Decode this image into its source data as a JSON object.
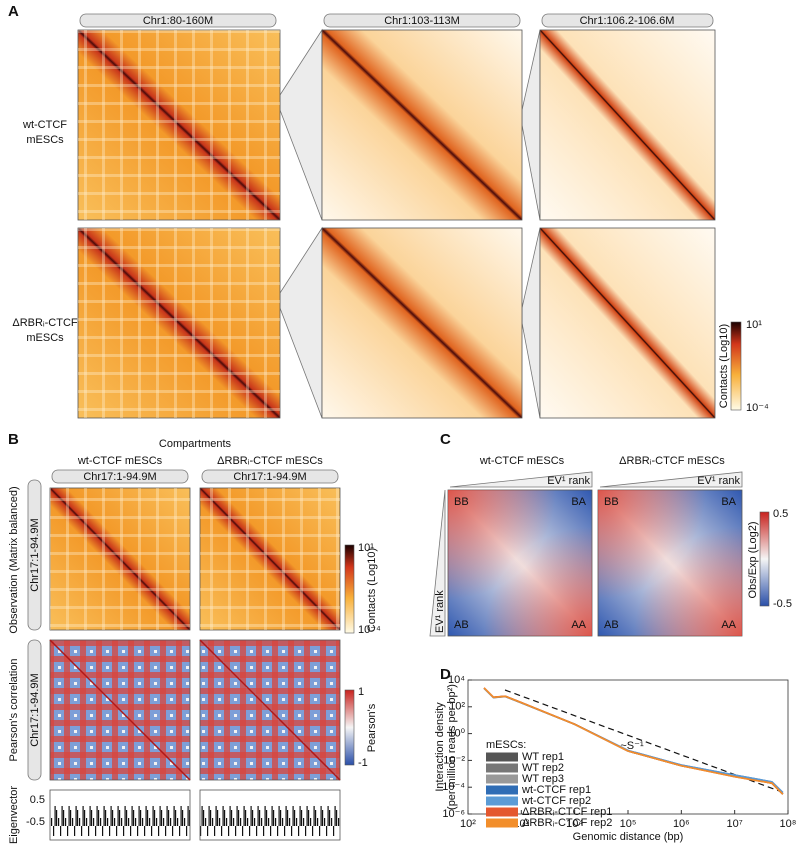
{
  "panel_labels": [
    "A",
    "B",
    "C",
    "D"
  ],
  "panel_a": {
    "headers": [
      "Chr1:80-160M",
      "Chr1:103-113M",
      "Chr1:106.2-106.6M"
    ],
    "rows": [
      [
        "wt-CTCF",
        "mESCs"
      ],
      [
        "ΔRBRᵢ-CTCF",
        "mESCs"
      ]
    ],
    "colorbar": {
      "max": "10¹",
      "min": "10⁻⁴",
      "label": "Contacts (Log10)"
    }
  },
  "panel_b": {
    "title": "Compartments",
    "columns": [
      "wt-CTCF mESCs",
      "ΔRBRᵢ-CTCF mESCs"
    ],
    "region": "Chr17:1-94.9M",
    "row_labels": [
      "Observation (Matrix balanced)",
      "Pearson's correlation",
      "Eigenvector"
    ],
    "contacts_colorbar": {
      "max": "10¹",
      "min": "10⁻⁴",
      "label": "Contacts (Log10)"
    },
    "pearson_colorbar": {
      "max": "1",
      "min": "-1",
      "label": "Pearson's"
    },
    "eigenvector_ticks": [
      "0.5",
      "-0.5"
    ]
  },
  "panel_c": {
    "columns": [
      "wt-CTCF mESCs",
      "ΔRBRᵢ-CTCF mESCs"
    ],
    "rank_label": "EV¹ rank",
    "corners": [
      "BB",
      "BA",
      "AB",
      "AA"
    ],
    "colorbar": {
      "max": "0.5",
      "min": "-0.5",
      "label": "Obs/Exp (Log2)"
    }
  },
  "chart_data": {
    "type": "line",
    "xlabel": "Genomic distance (bp)",
    "ylabel": [
      "Interaction density",
      "(per million reads per bp²)"
    ],
    "annotation": "~S⁻¹",
    "legend_title": "mESCs:",
    "log_x": true,
    "log_y": true,
    "xlim": [
      100,
      100000000
    ],
    "ylim": [
      1e-06,
      10000
    ],
    "xticks": [
      {
        "value": 100,
        "label": "10²"
      },
      {
        "value": 1000,
        "label": "10³"
      },
      {
        "value": 10000,
        "label": "10⁴"
      },
      {
        "value": 100000,
        "label": "10⁵"
      },
      {
        "value": 1000000,
        "label": "10⁶"
      },
      {
        "value": 10000000,
        "label": "10⁷"
      },
      {
        "value": 100000000,
        "label": "10⁸"
      }
    ],
    "yticks": [
      {
        "value": 1e-06,
        "label": "10⁻⁶"
      },
      {
        "value": 0.0001,
        "label": "10⁻⁴"
      },
      {
        "value": 0.01,
        "label": "10⁻²"
      },
      {
        "value": 1,
        "label": "10⁰"
      },
      {
        "value": 100,
        "label": "10²"
      },
      {
        "value": 10000,
        "label": "10⁴"
      }
    ],
    "x": [
      200,
      300,
      500,
      1000,
      10000,
      100000,
      1000000,
      10000000,
      50000000,
      80000000
    ],
    "series": [
      {
        "name": "WT rep1",
        "color": "#555555",
        "values": [
          2500,
          500,
          600,
          200,
          5,
          0.05,
          0.004,
          0.0007,
          0.0002,
          3e-05
        ]
      },
      {
        "name": "WT rep2",
        "color": "#777777",
        "values": [
          2400,
          480,
          580,
          195,
          5,
          0.05,
          0.004,
          0.0007,
          0.0002,
          3e-05
        ]
      },
      {
        "name": "WT rep3",
        "color": "#999999",
        "values": [
          2450,
          490,
          590,
          198,
          5,
          0.05,
          0.004,
          0.0007,
          0.0002,
          3e-05
        ]
      },
      {
        "name": "wt-CTCF rep1",
        "color": "#2f6db5",
        "values": [
          2500,
          510,
          610,
          205,
          5,
          0.055,
          0.0045,
          0.0008,
          0.00025,
          4e-05
        ]
      },
      {
        "name": "wt-CTCF rep2",
        "color": "#5b9bd5",
        "values": [
          2450,
          500,
          600,
          200,
          5,
          0.055,
          0.0045,
          0.0008,
          0.00025,
          4e-05
        ]
      },
      {
        "name": "ΔRBRᵢ-CTCF rep1",
        "color": "#e4572e",
        "values": [
          2600,
          520,
          620,
          210,
          5,
          0.05,
          0.004,
          0.0006,
          0.0002,
          3e-05
        ]
      },
      {
        "name": "ΔRBRᵢ-CTCF rep2",
        "color": "#f28e2b",
        "values": [
          2550,
          510,
          610,
          205,
          5,
          0.05,
          0.004,
          0.0006,
          0.0002,
          3e-05
        ]
      }
    ]
  }
}
